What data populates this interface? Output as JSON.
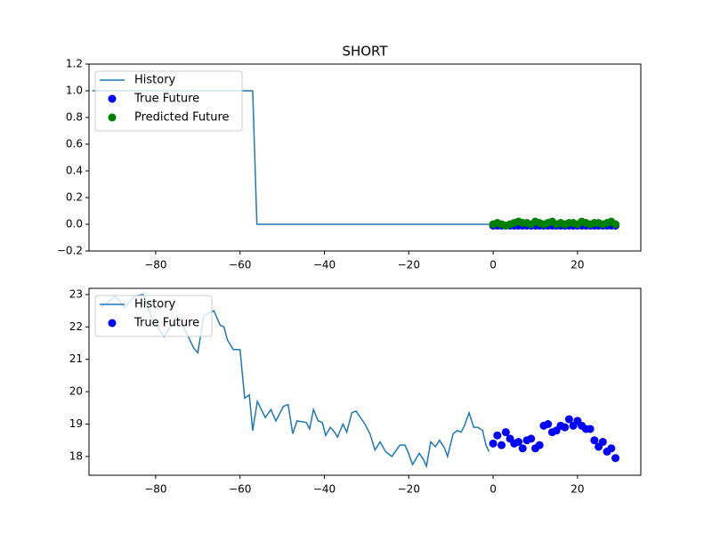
{
  "chart_data": [
    {
      "type": "line",
      "title": "SHORT",
      "legend": "upper left",
      "xlim": [
        -95.8,
        35
      ],
      "ylim": [
        -0.2,
        1.2
      ],
      "xticks": [
        {
          "value": -80,
          "label": "−80"
        },
        {
          "value": -60,
          "label": "−60"
        },
        {
          "value": -40,
          "label": "−40"
        },
        {
          "value": -20,
          "label": "−20"
        },
        0,
        20
      ],
      "yticks": [
        {
          "value": -0.2,
          "label": "−0.2"
        },
        {
          "value": 0,
          "label": "0.0"
        },
        {
          "value": 0.2,
          "label": "0.2"
        },
        {
          "value": 0.4,
          "label": "0.4"
        },
        {
          "value": 0.6,
          "label": "0.6"
        },
        {
          "value": 0.8,
          "label": "0.8"
        },
        {
          "value": 1.0,
          "label": "1.0"
        },
        {
          "value": 1.2,
          "label": "1.2"
        }
      ],
      "series": [
        {
          "name": "History",
          "color": "#1f77b4",
          "kind": "line",
          "x": [
            -95,
            -57,
            -56,
            -1
          ],
          "values": [
            1,
            1,
            0,
            0
          ]
        },
        {
          "name": "True Future",
          "color": "#0000ff",
          "kind": "scatter",
          "x": [
            0,
            1,
            2,
            3,
            4,
            5,
            6,
            7,
            8,
            9,
            10,
            11,
            12,
            13,
            14,
            15,
            16,
            17,
            18,
            19,
            20,
            21,
            22,
            23,
            24,
            25,
            26,
            27,
            28,
            29
          ],
          "values": [
            -0.01,
            -0.01,
            -0.01,
            -0.01,
            -0.01,
            -0.01,
            -0.01,
            -0.01,
            -0.01,
            -0.01,
            -0.01,
            -0.01,
            -0.01,
            -0.01,
            -0.01,
            -0.01,
            -0.01,
            -0.01,
            -0.01,
            -0.01,
            -0.01,
            -0.01,
            -0.01,
            -0.01,
            -0.01,
            -0.01,
            -0.01,
            -0.01,
            -0.01,
            -0.01
          ]
        },
        {
          "name": "Predicted Future",
          "color": "#008000",
          "kind": "scatter",
          "x": [
            0,
            1,
            2,
            3,
            4,
            5,
            6,
            7,
            8,
            9,
            10,
            11,
            12,
            13,
            14,
            15,
            16,
            17,
            18,
            19,
            20,
            21,
            22,
            23,
            24,
            25,
            26,
            27,
            28,
            29
          ],
          "values": [
            0.0,
            0.01,
            0.0,
            -0.01,
            0.0,
            0.01,
            0.02,
            0.01,
            0.01,
            0.0,
            0.02,
            0.01,
            0.0,
            0.01,
            0.02,
            0.0,
            0.01,
            0.0,
            0.01,
            0.01,
            0.0,
            0.02,
            0.01,
            0.0,
            0.01,
            0.01,
            0.0,
            0.01,
            0.02,
            0.0
          ]
        }
      ]
    },
    {
      "type": "line",
      "legend": "upper left",
      "xlim": [
        -95.8,
        35
      ],
      "ylim": [
        17.42,
        23.19
      ],
      "xticks": [
        {
          "value": -80,
          "label": "−80"
        },
        {
          "value": -60,
          "label": "−60"
        },
        {
          "value": -40,
          "label": "−40"
        },
        {
          "value": -20,
          "label": "−20"
        },
        0,
        20
      ],
      "yticks": [
        18,
        19,
        20,
        21,
        22,
        23
      ],
      "series": [
        {
          "name": "History",
          "color": "#1f77b4",
          "kind": "line",
          "x": [
            -93,
            -89.5,
            -87.4,
            -85,
            -83,
            -81,
            -78,
            -75,
            -73,
            -71,
            -70,
            -68.6,
            -66.2,
            -64.7,
            -63.8,
            -63,
            -61.6,
            -60,
            -58.9,
            -57.8,
            -57,
            -55.9,
            -54,
            -52.7,
            -51.5,
            -49.7,
            -48.6,
            -47.5,
            -46.5,
            -44.3,
            -43.5,
            -42.6,
            -41.5,
            -40.5,
            -39.7,
            -38.6,
            -37.6,
            -36.9,
            -35.6,
            -34.7,
            -33.5,
            -32.5,
            -30.4,
            -29.2,
            -28,
            -26.8,
            -25.5,
            -24,
            -22.1,
            -20.9,
            -20.2,
            -19.1,
            -17.5,
            -16.5,
            -15.8,
            -14.8,
            -13.7,
            -12.7,
            -11.5,
            -10.8,
            -9.5,
            -8.5,
            -7.6,
            -6.8,
            -5.7,
            -4.6,
            -3.6,
            -2.5,
            -1.7,
            -1
          ],
          "values": [
            22.6,
            22.95,
            22.6,
            22.95,
            23.0,
            22.3,
            21.7,
            22.3,
            21.9,
            21.35,
            21.2,
            22.35,
            22.5,
            22.05,
            22.0,
            21.6,
            21.3,
            21.3,
            19.8,
            19.9,
            18.8,
            19.7,
            19.2,
            19.45,
            19.1,
            19.55,
            19.6,
            18.7,
            19.1,
            19.05,
            18.85,
            19.45,
            19.1,
            19.05,
            18.65,
            18.9,
            18.75,
            18.6,
            19.0,
            18.75,
            19.35,
            19.4,
            19.0,
            18.7,
            18.2,
            18.45,
            18.15,
            18.0,
            18.35,
            18.35,
            18.15,
            17.75,
            18.1,
            17.9,
            17.7,
            18.45,
            18.3,
            18.5,
            18.25,
            18.0,
            18.7,
            18.8,
            18.75,
            18.95,
            19.35,
            18.9,
            18.9,
            18.8,
            18.35,
            18.15
          ]
        },
        {
          "name": "True Future",
          "color": "#0000ff",
          "kind": "scatter",
          "x": [
            0,
            1,
            2,
            3,
            4,
            5,
            6,
            7,
            8,
            9,
            10,
            11,
            12,
            13,
            14,
            15,
            16,
            17,
            18,
            19,
            20,
            21,
            22,
            23,
            24,
            25,
            26,
            27,
            28,
            29
          ],
          "values": [
            18.4,
            18.65,
            18.35,
            18.75,
            18.55,
            18.4,
            18.45,
            18.25,
            18.5,
            18.55,
            18.25,
            18.35,
            18.95,
            19.0,
            18.75,
            18.8,
            18.95,
            18.9,
            19.15,
            18.95,
            19.1,
            18.95,
            18.85,
            18.85,
            18.5,
            18.3,
            18.45,
            18.15,
            18.25,
            17.95
          ]
        }
      ]
    }
  ]
}
